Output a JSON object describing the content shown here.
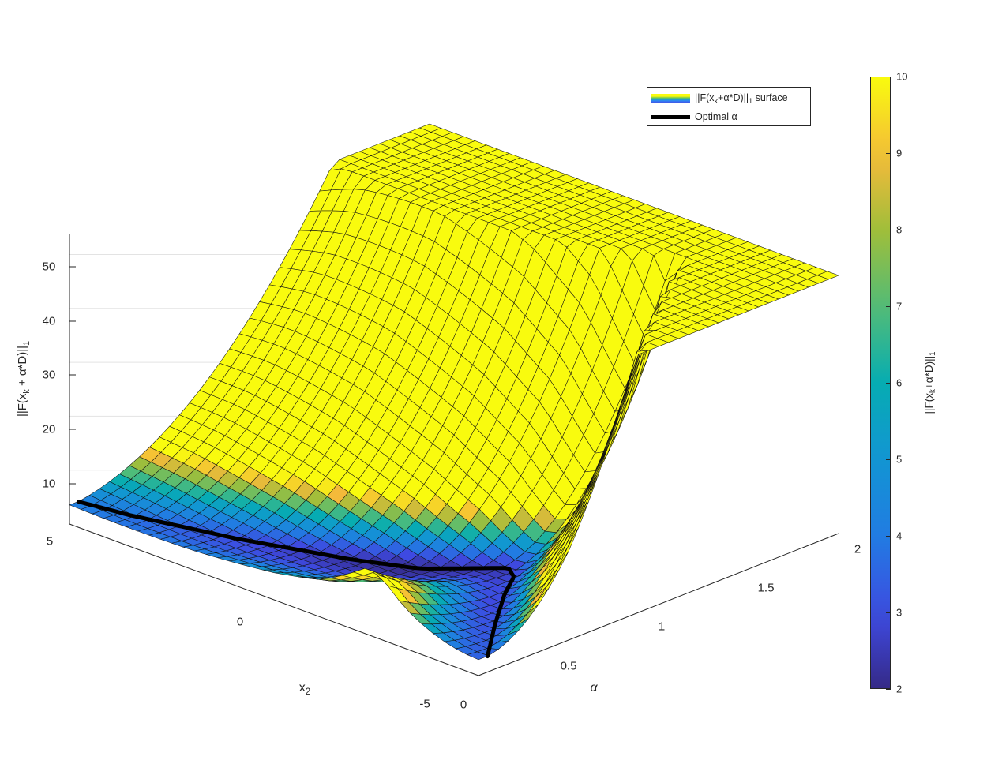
{
  "chart_data": {
    "type": "surface",
    "series": [
      {
        "name": "||F(x_k+α*D)||_1 surface",
        "kind": "surface"
      },
      {
        "name": "Optimal α",
        "kind": "line",
        "color": "#000000"
      }
    ],
    "xlabel": "α",
    "ylabel": "x_2",
    "zlabel": "||F(x_k + α*D)||_1",
    "xlim": [
      0,
      2
    ],
    "ylim": [
      -5,
      5
    ],
    "zlim": [
      0,
      55
    ],
    "x_ticks": [
      "0",
      "0.5",
      "1",
      "1.5",
      "2"
    ],
    "y_ticks": [
      "-5",
      "0",
      "5"
    ],
    "z_ticks": [
      "10",
      "20",
      "30",
      "40",
      "50"
    ],
    "colorbar": {
      "label": "||F(x_k+α*D)||_1",
      "range": [
        2,
        10
      ],
      "ticks": [
        "2",
        "3",
        "4",
        "5",
        "6",
        "7",
        "8",
        "9",
        "10"
      ],
      "colormap": "parula"
    },
    "surface_corner_values": [
      {
        "alpha": 0,
        "x2": -5,
        "z": 1.0
      },
      {
        "alpha": 0,
        "x2": 5,
        "z": 6.3
      },
      {
        "alpha": 2,
        "x2": 5,
        "z": 55.5
      },
      {
        "alpha": 2,
        "x2": -5,
        "z": 51
      }
    ],
    "optimal_alpha_curve": [
      {
        "x2": -5.0,
        "alpha": 0.05
      },
      {
        "x2": -4.0,
        "alpha": 0.32
      },
      {
        "x2": -3.2,
        "alpha": 0.55
      },
      {
        "x2": -2.7,
        "alpha": 0.72
      },
      {
        "x2": -2.3,
        "alpha": 0.78
      },
      {
        "x2": -1.9,
        "alpha": 0.7
      },
      {
        "x2": -1.2,
        "alpha": 0.56
      },
      {
        "x2": 0.0,
        "alpha": 0.42
      },
      {
        "x2": 2.0,
        "alpha": 0.24
      },
      {
        "x2": 4.0,
        "alpha": 0.1
      },
      {
        "x2": 5.0,
        "alpha": 0.05
      }
    ],
    "legend_placement": "top-right",
    "grid": true
  },
  "legend": {
    "surface_label_pre": "||F(x",
    "surface_label_sub_k": "k",
    "surface_label_mid": "+α*D)||",
    "surface_label_sub_1": "1",
    "surface_label_post": " surface",
    "optimal_label": "Optimal α"
  },
  "axes": {
    "x_label": "α",
    "y_label_base": "x",
    "y_label_sub": "2",
    "z_label_pre": "||F(x",
    "z_label_sub_k": "k",
    "z_label_mid": " + α*D)||",
    "z_label_sub_1": "1"
  },
  "colorbar_label": {
    "pre": "||F(x",
    "sub_k": "k",
    "mid": "+α*D)||",
    "sub_1": "1"
  }
}
